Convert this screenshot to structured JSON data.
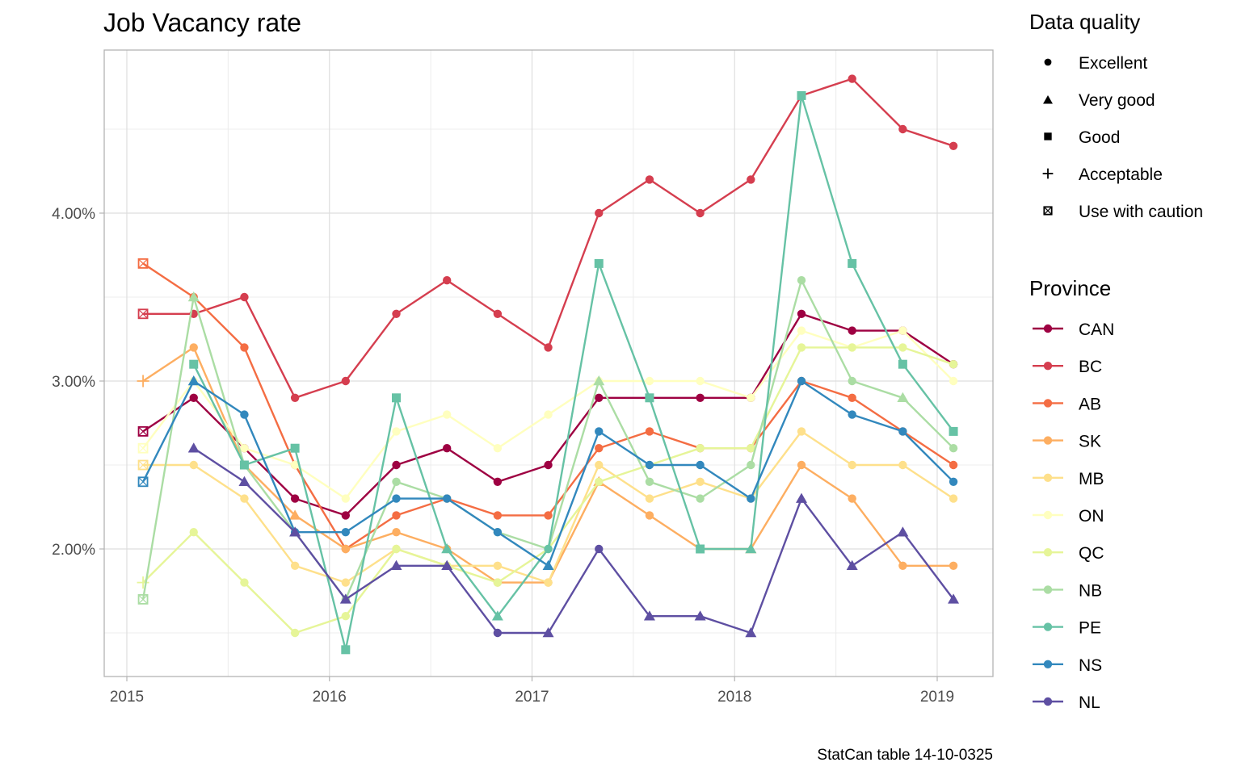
{
  "chart_data": {
    "type": "line",
    "title": "Job Vacancy rate",
    "caption": "StatCan table 14-10-0325",
    "xlabel": "",
    "ylabel": "",
    "x_ticks": [
      "2015",
      "2016",
      "2017",
      "2018",
      "2019"
    ],
    "y_ticks": [
      "2.00%",
      "3.00%",
      "4.00%"
    ],
    "ylim": [
      1.25,
      4.97
    ],
    "xlim": [
      2014.94,
      2019.28
    ],
    "grid": true,
    "x": [
      2015.08,
      2015.33,
      2015.58,
      2015.83,
      2016.08,
      2016.33,
      2016.58,
      2016.83,
      2017.08,
      2017.33,
      2017.58,
      2017.83,
      2018.08,
      2018.33,
      2018.58,
      2018.83,
      2019.08
    ],
    "quality_legend": {
      "title": "Data quality",
      "entries": [
        {
          "code": "A",
          "label": "Excellent",
          "shape": "circle"
        },
        {
          "code": "B",
          "label": "Very good",
          "shape": "triangle"
        },
        {
          "code": "C",
          "label": "Good",
          "shape": "square"
        },
        {
          "code": "D",
          "label": "Acceptable",
          "shape": "plus"
        },
        {
          "code": "E",
          "label": "Use with caution",
          "shape": "boxcross"
        }
      ]
    },
    "series_legend_title": "Province",
    "series": [
      {
        "name": "CAN",
        "color": "#9E0142",
        "values": [
          2.7,
          2.9,
          2.6,
          2.3,
          2.2,
          2.5,
          2.6,
          2.4,
          2.5,
          2.9,
          2.9,
          2.9,
          2.9,
          3.4,
          3.3,
          3.3,
          3.1
        ],
        "quality": [
          "E",
          "A",
          "A",
          "A",
          "A",
          "A",
          "A",
          "A",
          "A",
          "A",
          "A",
          "A",
          "A",
          "A",
          "A",
          "A",
          "A"
        ]
      },
      {
        "name": "BC",
        "color": "#D53E4F",
        "values": [
          3.4,
          3.4,
          3.5,
          2.9,
          3.0,
          3.4,
          3.6,
          3.4,
          3.2,
          4.0,
          4.2,
          4.0,
          4.2,
          4.7,
          4.8,
          4.5,
          4.4
        ],
        "quality": [
          "E",
          "A",
          "A",
          "A",
          "A",
          "A",
          "A",
          "A",
          "A",
          "A",
          "A",
          "A",
          "A",
          "A",
          "A",
          "A",
          "A"
        ]
      },
      {
        "name": "AB",
        "color": "#F46D43",
        "values": [
          3.7,
          3.5,
          3.2,
          2.5,
          2.0,
          2.2,
          2.3,
          2.2,
          2.2,
          2.6,
          2.7,
          2.6,
          2.6,
          3.0,
          2.9,
          2.7,
          2.5
        ],
        "quality": [
          "E",
          "A",
          "A",
          "A",
          "A",
          "A",
          "A",
          "A",
          "A",
          "A",
          "A",
          "A",
          "A",
          "A",
          "A",
          "A",
          "A"
        ]
      },
      {
        "name": "SK",
        "color": "#FDAE61",
        "values": [
          3.0,
          3.2,
          2.5,
          2.2,
          2.0,
          2.1,
          2.0,
          1.8,
          1.8,
          2.4,
          2.2,
          2.0,
          2.0,
          2.5,
          2.3,
          1.9,
          1.9
        ],
        "quality": [
          "D",
          "A",
          "A",
          "B",
          "A",
          "A",
          "A",
          "A",
          "A",
          "B",
          "A",
          "A",
          "B",
          "A",
          "A",
          "A",
          "A"
        ]
      },
      {
        "name": "MB",
        "color": "#FEE08B",
        "values": [
          2.5,
          2.5,
          2.3,
          1.9,
          1.8,
          2.0,
          1.9,
          1.9,
          1.8,
          2.5,
          2.3,
          2.4,
          2.3,
          2.7,
          2.5,
          2.5,
          2.3
        ],
        "quality": [
          "E",
          "A",
          "A",
          "A",
          "A",
          "A",
          "A",
          "A",
          "A",
          "A",
          "A",
          "A",
          "A",
          "A",
          "A",
          "A",
          "A"
        ]
      },
      {
        "name": "ON",
        "color": "#FFFFBF",
        "values": [
          2.6,
          3.0,
          2.6,
          2.5,
          2.3,
          2.7,
          2.8,
          2.6,
          2.8,
          3.0,
          3.0,
          3.0,
          2.9,
          3.3,
          3.2,
          3.3,
          3.0
        ],
        "quality": [
          "E",
          "A",
          "A",
          "A",
          "A",
          "A",
          "A",
          "A",
          "A",
          "A",
          "A",
          "A",
          "A",
          "A",
          "A",
          "A",
          "A"
        ]
      },
      {
        "name": "QC",
        "color": "#E6F598",
        "values": [
          1.8,
          2.1,
          1.8,
          1.5,
          1.6,
          2.0,
          1.9,
          1.8,
          2.0,
          2.4,
          2.5,
          2.6,
          2.6,
          3.2,
          3.2,
          3.2,
          3.1
        ],
        "quality": [
          "D",
          "A",
          "A",
          "A",
          "A",
          "A",
          "A",
          "A",
          "A",
          "A",
          "A",
          "A",
          "A",
          "A",
          "A",
          "A",
          "A"
        ]
      },
      {
        "name": "NB",
        "color": "#ABDDA4",
        "values": [
          1.7,
          3.5,
          2.5,
          2.1,
          1.7,
          2.4,
          2.3,
          2.1,
          2.0,
          3.0,
          2.4,
          2.3,
          2.5,
          3.6,
          3.0,
          2.9,
          2.6
        ],
        "quality": [
          "E",
          "B",
          "A",
          "B",
          "A",
          "A",
          "A",
          "A",
          "A",
          "B",
          "A",
          "A",
          "A",
          "A",
          "A",
          "B",
          "A"
        ]
      },
      {
        "name": "PE",
        "color": "#66C2A5",
        "values": [
          null,
          3.1,
          2.5,
          2.6,
          1.4,
          2.9,
          2.0,
          1.6,
          2.0,
          3.7,
          2.9,
          2.0,
          2.0,
          4.7,
          3.7,
          3.1,
          2.7
        ],
        "quality": [
          null,
          "C",
          "C",
          "C",
          "C",
          "C",
          "B",
          "B",
          "A",
          "C",
          "C",
          "C",
          "B",
          "C",
          "C",
          "C",
          "C"
        ]
      },
      {
        "name": "NS",
        "color": "#3288BD",
        "values": [
          2.4,
          3.0,
          2.8,
          2.1,
          2.1,
          2.3,
          2.3,
          2.1,
          1.9,
          2.7,
          2.5,
          2.5,
          2.3,
          3.0,
          2.8,
          2.7,
          2.4
        ],
        "quality": [
          "E",
          "B",
          "A",
          "A",
          "A",
          "A",
          "A",
          "A",
          "B",
          "A",
          "A",
          "A",
          "A",
          "A",
          "A",
          "A",
          "A"
        ]
      },
      {
        "name": "NL",
        "color": "#5E4FA2",
        "values": [
          null,
          2.6,
          2.4,
          2.1,
          1.7,
          1.9,
          1.9,
          1.5,
          1.5,
          2.0,
          1.6,
          1.6,
          1.5,
          2.3,
          1.9,
          2.1,
          1.7
        ],
        "quality": [
          null,
          "B",
          "B",
          "B",
          "B",
          "B",
          "B",
          "A",
          "B",
          "A",
          "B",
          "B",
          "B",
          "B",
          "B",
          "B",
          "B"
        ]
      }
    ]
  }
}
